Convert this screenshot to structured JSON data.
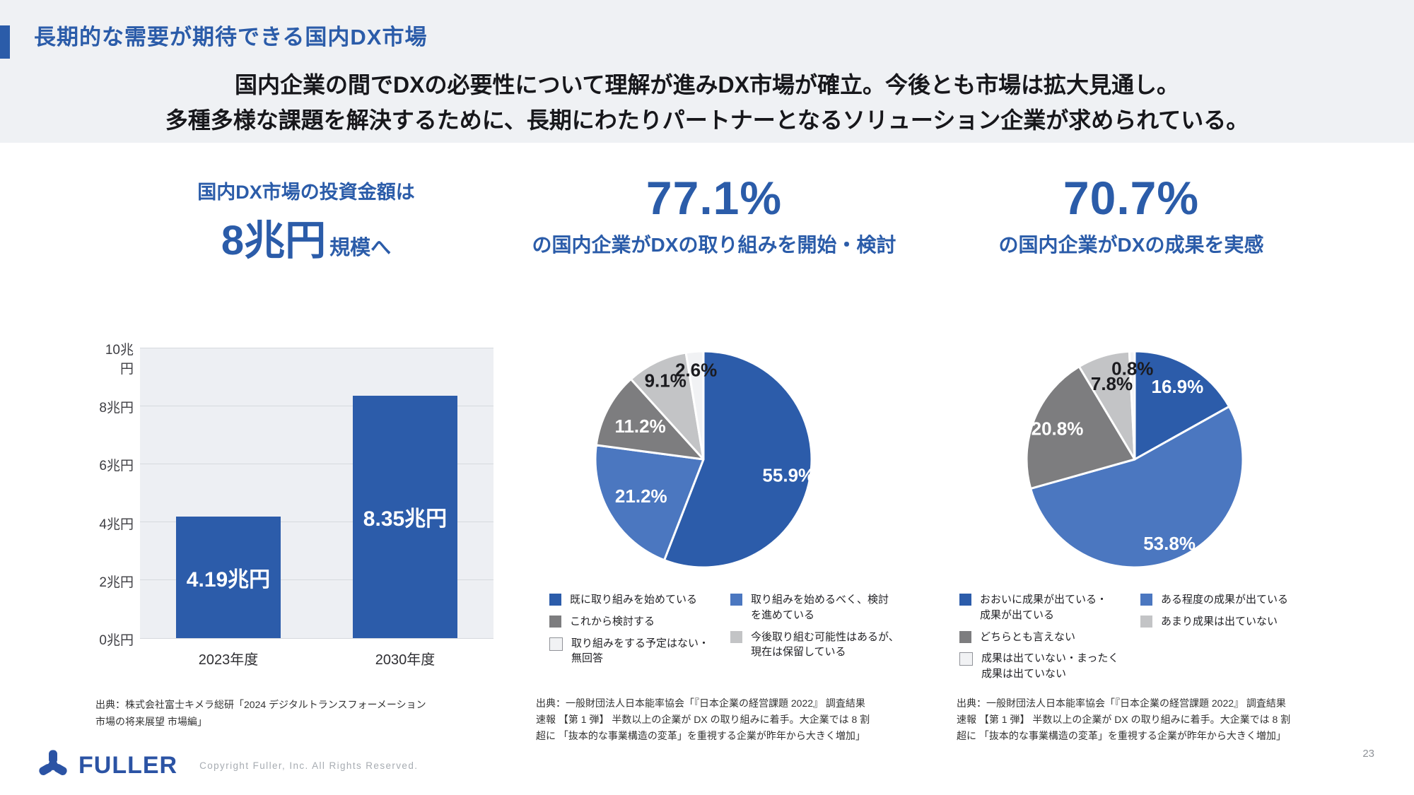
{
  "slide": {
    "title": "長期的な需要が期待できる国内DX市場",
    "subtitle": "国内企業の間でDXの必要性について理解が進みDX市場が確立。今後とも市場は拡大見通し。\n多種多様な課題を解決するために、長期にわたりパートナーとなるソリューション企業が求められている。",
    "page_number": "23"
  },
  "footer": {
    "logo_text": "FULLER",
    "copyright": "Copyright Fuller, Inc. All Rights Reserved."
  },
  "colors": {
    "primary_blue": "#2c5caa",
    "medium_blue": "#4b77c0",
    "dark_gray": "#7d7d7f",
    "light_gray": "#c3c4c6",
    "near_white": "#f1f2f4",
    "title_blue": "#2b5ca9",
    "header_bg": "#eff1f4",
    "plot_bg": "#edeff3",
    "grid_line": "#d6d9de",
    "source_text": "#333333",
    "footer_text": "#a7acb2",
    "logo_blue": "#2b53a4"
  },
  "sections": {
    "market": {
      "heading_top": "国内DX市場の投資金額は",
      "heading_big": "8兆円",
      "heading_small": "規模へ",
      "source": "出典：株式会社富士キメラ総研「2024 デジタルトランスフォーメーション\n市場の将来展望 市場編」"
    },
    "adoption": {
      "stat": "77.1%",
      "caption": "の国内企業がDXの取り組みを開始・検討",
      "source": "出典：一般財団法人日本能率協会「『日本企業の経営課題 2022』 調査結果\n速報 【第 1 弾】 半数以上の企業が DX の取り組みに着手。大企業では 8 割\n超に 「抜本的な事業構造の変革」を重視する企業が昨年から大きく増加」"
    },
    "results": {
      "stat": "70.7%",
      "caption": "の国内企業がDXの成果を実感",
      "source": "出典：一般財団法人日本能率協会「『日本企業の経営課題 2022』 調査結果\n速報 【第 1 弾】 半数以上の企業が DX の取り組みに着手。大企業では 8 割\n超に 「抜本的な事業構造の変革」を重視する企業が昨年から大きく増加」"
    }
  },
  "chart_data": [
    {
      "type": "bar",
      "title": "国内DX市場の投資金額は8兆円規模へ",
      "categories": [
        "2023年度",
        "2030年度"
      ],
      "values": [
        4.19,
        8.35
      ],
      "bar_labels": [
        "4.19兆円",
        "8.35兆円"
      ],
      "unit": "兆円",
      "ylim": [
        0,
        10
      ],
      "yticks": [
        "0兆円",
        "2兆円",
        "4兆円",
        "6兆円",
        "8兆円",
        "10兆円"
      ],
      "grid": true,
      "bar_color": "primary_blue"
    },
    {
      "type": "pie",
      "title": "77.1%の国内企業がDXの取り組みを開始・検討",
      "start": "top",
      "direction": "clockwise",
      "slices": [
        {
          "label": "既に取り組みを始めている",
          "value": 55.9,
          "pct_label": "55.9%",
          "color": "primary_blue",
          "label_color": "white",
          "label_r": 0.8
        },
        {
          "label": "取り組みを始めるべく、検討を進めている",
          "value": 21.2,
          "pct_label": "21.2%",
          "color": "medium_blue",
          "label_color": "white",
          "label_r": 0.67
        },
        {
          "label": "これから検討する",
          "value": 11.2,
          "pct_label": "11.2%",
          "color": "dark_gray",
          "label_color": "white",
          "label_r": 0.66
        },
        {
          "label": "今後取り組む可能性はあるが、現在は保留している",
          "value": 9.1,
          "pct_label": "9.1%",
          "color": "light_gray",
          "label_color": "black",
          "label_r": 0.81
        },
        {
          "label": "取り組みをする予定はない・無回答",
          "value": 2.6,
          "pct_label": "2.6%",
          "color": "near_white",
          "label_color": "black",
          "label_r": 0.83
        }
      ],
      "legend_columns": [
        [
          {
            "color": "primary_blue",
            "text": "既に取り組みを始めている"
          },
          {
            "color": "dark_gray",
            "text": "これから検討する"
          },
          {
            "color": "near_white",
            "text": "取り組みをする予定はない・\n無回答"
          }
        ],
        [
          {
            "color": "medium_blue",
            "text": "取り組みを始めるべく、検討\nを進めている"
          },
          {
            "color": "light_gray",
            "text": "今後取り組む可能性はあるが、\n現在は保留している"
          }
        ]
      ]
    },
    {
      "type": "pie",
      "title": "70.7%の国内企業がDXの成果を実感",
      "start": "top",
      "direction": "clockwise",
      "slices": [
        {
          "label": "おおいに成果が出ている・成果が出ている",
          "value": 16.9,
          "pct_label": "16.9%",
          "color": "primary_blue",
          "label_color": "white",
          "label_r": 0.78
        },
        {
          "label": "ある程度の成果が出ている",
          "value": 53.8,
          "pct_label": "53.8%",
          "color": "medium_blue",
          "label_color": "white",
          "label_r": 0.84
        },
        {
          "label": "どちらとも言えない",
          "value": 20.8,
          "pct_label": "20.8%",
          "color": "dark_gray",
          "label_color": "white",
          "label_r": 0.77
        },
        {
          "label": "あまり成果は出ていない",
          "value": 7.8,
          "pct_label": "7.8%",
          "color": "light_gray",
          "label_color": "black",
          "label_r": 0.73
        },
        {
          "label": "成果は出ていない・まったく成果は出ていない",
          "value": 0.8,
          "pct_label": "0.8%",
          "color": "near_white",
          "label_color": "black",
          "label_r": 0.84
        }
      ],
      "legend_columns": [
        [
          {
            "color": "primary_blue",
            "text": "おおいに成果が出ている・\n成果が出ている"
          },
          {
            "color": "dark_gray",
            "text": "どちらとも言えない"
          },
          {
            "color": "near_white",
            "text": "成果は出ていない・まったく\n成果は出ていない"
          }
        ],
        [
          {
            "color": "medium_blue",
            "text": "ある程度の成果が出ている"
          },
          {
            "color": "light_gray",
            "text": "あまり成果は出ていない"
          }
        ]
      ]
    }
  ]
}
